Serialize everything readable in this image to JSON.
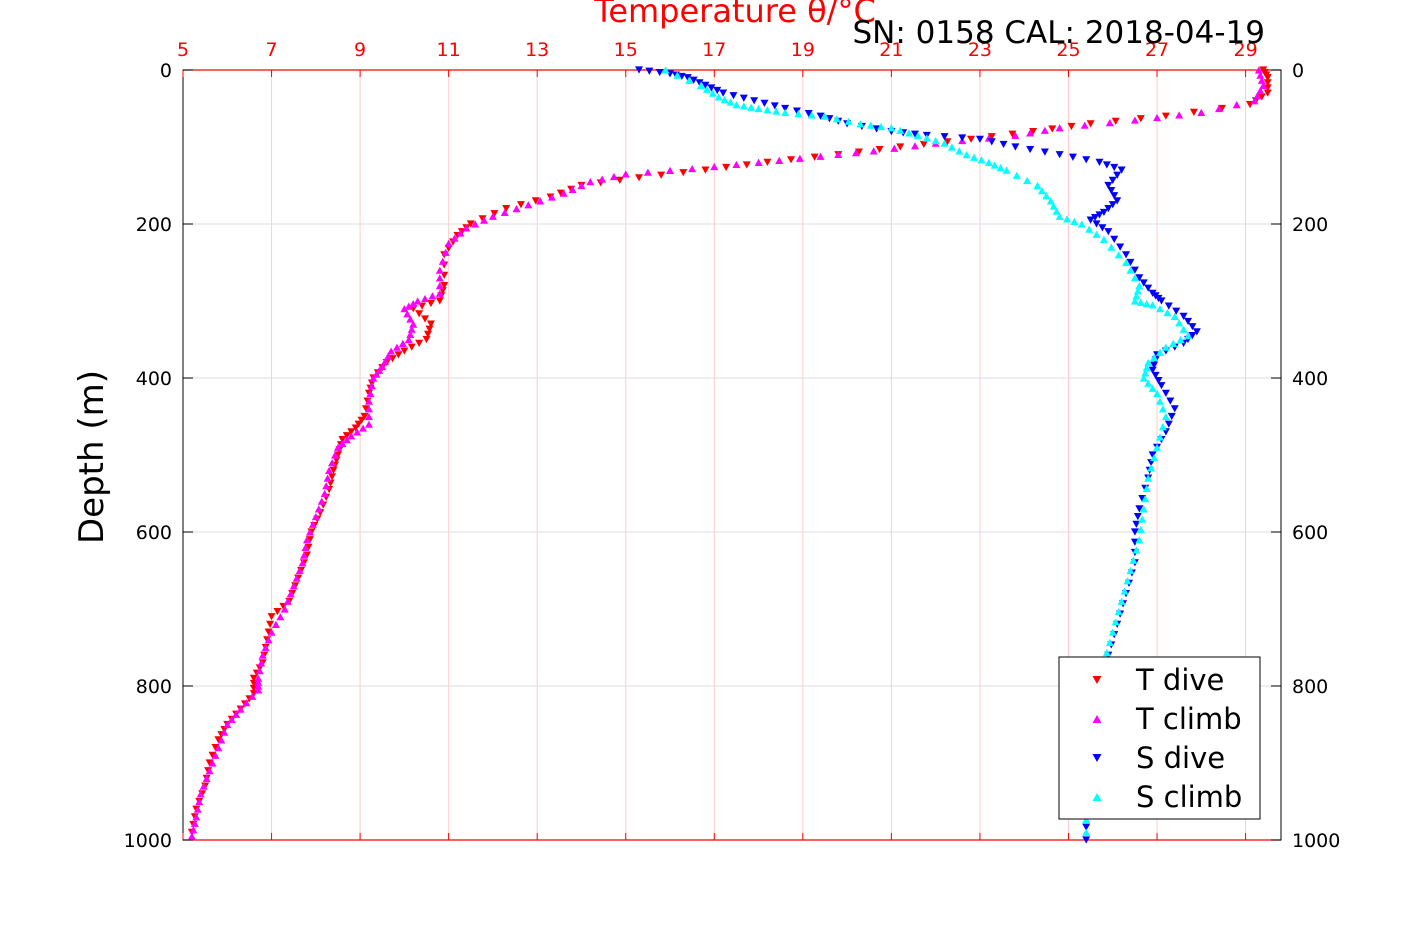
{
  "chart_data": {
    "type": "scatter",
    "title": "Temperature θ/°C",
    "subtitle": "SN: 0158  CAL: 2018-04-19",
    "xlabel": "Temperature θ/°C",
    "ylabel": "Depth (m)",
    "xlim": [
      5,
      29.8
    ],
    "ylim": [
      1000,
      0
    ],
    "y_reversed": true,
    "x_axis_position": "top",
    "grid": true,
    "x_ticks": [
      "5",
      "7",
      "9",
      "11",
      "13",
      "15",
      "17",
      "19",
      "21",
      "23",
      "25",
      "27",
      "29"
    ],
    "y_ticks": [
      "0",
      "200",
      "400",
      "600",
      "800",
      "1000"
    ],
    "legend_position": "bottom-right",
    "series": [
      {
        "name": "T dive",
        "marker": "triangle-down",
        "color": "#ff0000",
        "points": [
          [
            29.4,
            0
          ],
          [
            29.5,
            10
          ],
          [
            29.5,
            30
          ],
          [
            29.1,
            45
          ],
          [
            27.2,
            60
          ],
          [
            25.5,
            70
          ],
          [
            24.2,
            80
          ],
          [
            22.8,
            90
          ],
          [
            21.2,
            100
          ],
          [
            19.8,
            110
          ],
          [
            18.2,
            120
          ],
          [
            16.8,
            130
          ],
          [
            15.3,
            140
          ],
          [
            14.0,
            150
          ],
          [
            13.3,
            165
          ],
          [
            12.3,
            180
          ],
          [
            11.5,
            200
          ],
          [
            11.2,
            215
          ],
          [
            10.9,
            240
          ],
          [
            10.9,
            280
          ],
          [
            10.8,
            300
          ],
          [
            10.2,
            310
          ],
          [
            10.6,
            330
          ],
          [
            10.5,
            350
          ],
          [
            10.0,
            365
          ],
          [
            9.6,
            380
          ],
          [
            9.3,
            400
          ],
          [
            9.2,
            420
          ],
          [
            9.1,
            450
          ],
          [
            8.9,
            465
          ],
          [
            8.6,
            480
          ],
          [
            8.5,
            500
          ],
          [
            8.4,
            520
          ],
          [
            8.3,
            545
          ],
          [
            8.1,
            575
          ],
          [
            7.9,
            600
          ],
          [
            7.8,
            630
          ],
          [
            7.6,
            660
          ],
          [
            7.4,
            690
          ],
          [
            7.0,
            710
          ],
          [
            6.9,
            740
          ],
          [
            6.8,
            770
          ],
          [
            6.6,
            790
          ],
          [
            6.6,
            810
          ],
          [
            6.3,
            830
          ],
          [
            6.0,
            850
          ],
          [
            5.8,
            870
          ],
          [
            5.6,
            900
          ],
          [
            5.5,
            930
          ],
          [
            5.3,
            960
          ],
          [
            5.2,
            990
          ]
        ]
      },
      {
        "name": "T climb",
        "marker": "triangle-up",
        "color": "#ff00ff",
        "points": [
          [
            29.3,
            0
          ],
          [
            29.4,
            20
          ],
          [
            29.2,
            40
          ],
          [
            28.0,
            55
          ],
          [
            26.5,
            65
          ],
          [
            24.8,
            75
          ],
          [
            23.8,
            85
          ],
          [
            22.0,
            95
          ],
          [
            20.6,
            105
          ],
          [
            19.4,
            112
          ],
          [
            18.0,
            120
          ],
          [
            16.5,
            128
          ],
          [
            15.0,
            135
          ],
          [
            14.2,
            145
          ],
          [
            13.6,
            160
          ],
          [
            12.8,
            175
          ],
          [
            12.0,
            190
          ],
          [
            11.4,
            205
          ],
          [
            11.0,
            225
          ],
          [
            10.8,
            260
          ],
          [
            10.8,
            290
          ],
          [
            10.3,
            300
          ],
          [
            10.0,
            310
          ],
          [
            10.2,
            330
          ],
          [
            10.1,
            350
          ],
          [
            9.7,
            365
          ],
          [
            9.5,
            385
          ],
          [
            9.3,
            400
          ],
          [
            9.2,
            430
          ],
          [
            9.2,
            460
          ],
          [
            8.8,
            475
          ],
          [
            8.5,
            490
          ],
          [
            8.3,
            520
          ],
          [
            8.2,
            550
          ],
          [
            8.0,
            580
          ],
          [
            7.8,
            610
          ],
          [
            7.7,
            640
          ],
          [
            7.5,
            670
          ],
          [
            7.3,
            700
          ],
          [
            7.0,
            730
          ],
          [
            6.8,
            760
          ],
          [
            6.7,
            790
          ],
          [
            6.7,
            805
          ],
          [
            6.3,
            830
          ],
          [
            6.0,
            850
          ],
          [
            5.8,
            880
          ],
          [
            5.6,
            910
          ],
          [
            5.4,
            940
          ],
          [
            5.3,
            970
          ],
          [
            5.2,
            995
          ]
        ]
      },
      {
        "name": "S dive",
        "marker": "triangle-down",
        "color": "#0000ff",
        "points": [
          [
            15.3,
            0
          ],
          [
            16.0,
            5
          ],
          [
            16.4,
            10
          ],
          [
            16.8,
            20
          ],
          [
            17.2,
            30
          ],
          [
            17.9,
            40
          ],
          [
            18.6,
            50
          ],
          [
            19.4,
            60
          ],
          [
            20.0,
            70
          ],
          [
            21.0,
            80
          ],
          [
            21.8,
            85
          ],
          [
            23.0,
            90
          ],
          [
            23.8,
            100
          ],
          [
            24.8,
            110
          ],
          [
            25.7,
            120
          ],
          [
            26.2,
            130
          ],
          [
            25.9,
            150
          ],
          [
            26.1,
            170
          ],
          [
            25.8,
            185
          ],
          [
            25.5,
            195
          ],
          [
            25.9,
            210
          ],
          [
            26.3,
            240
          ],
          [
            26.6,
            270
          ],
          [
            26.9,
            290
          ],
          [
            27.1,
            300
          ],
          [
            27.6,
            320
          ],
          [
            27.9,
            340
          ],
          [
            27.6,
            355
          ],
          [
            27.0,
            370
          ],
          [
            26.9,
            390
          ],
          [
            27.1,
            410
          ],
          [
            27.4,
            440
          ],
          [
            27.2,
            470
          ],
          [
            26.9,
            500
          ],
          [
            26.8,
            530
          ],
          [
            26.6,
            570
          ],
          [
            26.5,
            600
          ],
          [
            26.5,
            640
          ],
          [
            26.3,
            680
          ],
          [
            26.1,
            720
          ],
          [
            25.9,
            760
          ],
          [
            25.8,
            800
          ],
          [
            25.6,
            850
          ],
          [
            25.5,
            900
          ],
          [
            25.4,
            950
          ],
          [
            25.4,
            1000
          ]
        ]
      },
      {
        "name": "S climb",
        "marker": "triangle-up",
        "color": "#00ffff",
        "points": [
          [
            15.9,
            0
          ],
          [
            16.7,
            20
          ],
          [
            17.1,
            35
          ],
          [
            17.5,
            45
          ],
          [
            18.0,
            50
          ],
          [
            18.6,
            55
          ],
          [
            19.5,
            60
          ],
          [
            20.3,
            70
          ],
          [
            21.0,
            75
          ],
          [
            21.6,
            85
          ],
          [
            22.2,
            95
          ],
          [
            22.7,
            110
          ],
          [
            23.2,
            120
          ],
          [
            23.6,
            130
          ],
          [
            24.3,
            150
          ],
          [
            24.6,
            170
          ],
          [
            24.8,
            190
          ],
          [
            25.3,
            200
          ],
          [
            25.8,
            220
          ],
          [
            26.3,
            250
          ],
          [
            26.6,
            280
          ],
          [
            26.5,
            300
          ],
          [
            26.9,
            305
          ],
          [
            27.4,
            320
          ],
          [
            27.7,
            345
          ],
          [
            27.2,
            360
          ],
          [
            26.8,
            380
          ],
          [
            26.7,
            400
          ],
          [
            27.0,
            420
          ],
          [
            27.2,
            450
          ],
          [
            27.0,
            490
          ],
          [
            26.8,
            530
          ],
          [
            26.7,
            570
          ],
          [
            26.6,
            610
          ],
          [
            26.4,
            650
          ],
          [
            26.2,
            690
          ],
          [
            26.0,
            730
          ],
          [
            25.8,
            770
          ],
          [
            25.6,
            820
          ],
          [
            25.5,
            880
          ],
          [
            25.4,
            940
          ],
          [
            25.4,
            990
          ]
        ]
      }
    ]
  }
}
